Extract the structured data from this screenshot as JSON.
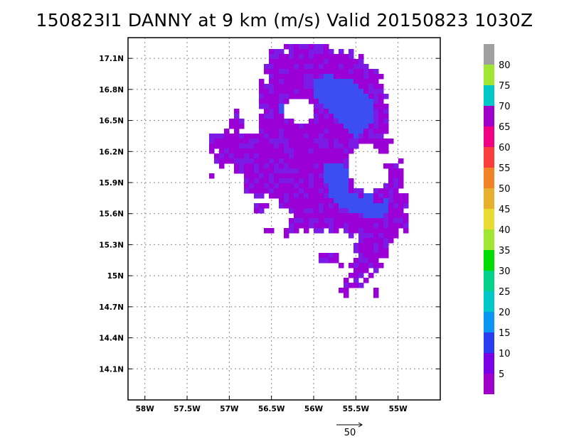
{
  "title": "150823I1 DANNY at 9 km (m/s) Valid 20150823 1030Z",
  "map": {
    "lon_range": [
      -58.2,
      -54.5
    ],
    "lat_range": [
      13.8,
      17.3
    ],
    "lat_ticks": [
      {
        "value": 17.1,
        "label": "17.1N"
      },
      {
        "value": 16.8,
        "label": "16.8N"
      },
      {
        "value": 16.5,
        "label": "16.5N"
      },
      {
        "value": 16.2,
        "label": "16.2N"
      },
      {
        "value": 15.9,
        "label": "15.9N"
      },
      {
        "value": 15.6,
        "label": "15.6N"
      },
      {
        "value": 15.3,
        "label": "15.3N"
      },
      {
        "value": 15.0,
        "label": "15N"
      },
      {
        "value": 14.7,
        "label": "14.7N"
      },
      {
        "value": 14.4,
        "label": "14.4N"
      },
      {
        "value": 14.1,
        "label": "14.1N"
      }
    ],
    "lon_ticks": [
      {
        "value": -58.0,
        "label": "58W"
      },
      {
        "value": -57.5,
        "label": "57.5W"
      },
      {
        "value": -57.0,
        "label": "57W"
      },
      {
        "value": -56.5,
        "label": "56.5W"
      },
      {
        "value": -56.0,
        "label": "56W"
      },
      {
        "value": -55.5,
        "label": "55.5W"
      },
      {
        "value": -55.0,
        "label": "55W"
      }
    ],
    "grid": "dotted",
    "wind_field_colors": {
      "low": "#9a00d6",
      "mid": "#7c1be6",
      "high": "#3c4df2",
      "arrows": "#a8a8a8"
    }
  },
  "colorbar": {
    "levels": [
      {
        "color": "#a000c8"
      },
      {
        "label": "5",
        "color": "#7a00e6"
      },
      {
        "label": "10",
        "color": "#2a3cf0"
      },
      {
        "label": "15",
        "color": "#0a96f0"
      },
      {
        "label": "20",
        "color": "#00c8c8"
      },
      {
        "label": "25",
        "color": "#00d28c"
      },
      {
        "label": "30",
        "color": "#00dc00"
      },
      {
        "label": "35",
        "color": "#a0e632"
      },
      {
        "label": "40",
        "color": "#e6dc32"
      },
      {
        "label": "45",
        "color": "#e6af2d"
      },
      {
        "label": "50",
        "color": "#f08228"
      },
      {
        "label": "55",
        "color": "#fa3c3c"
      },
      {
        "label": "60",
        "color": "#f00082"
      },
      {
        "label": "65",
        "color": "#a000c8"
      },
      {
        "label": "70",
        "color": "#00c8c8"
      },
      {
        "label": "75",
        "color": "#a0e632"
      },
      {
        "label": "80",
        "color": "#a0a0a0"
      }
    ]
  },
  "reference_vector": {
    "label": "50"
  }
}
